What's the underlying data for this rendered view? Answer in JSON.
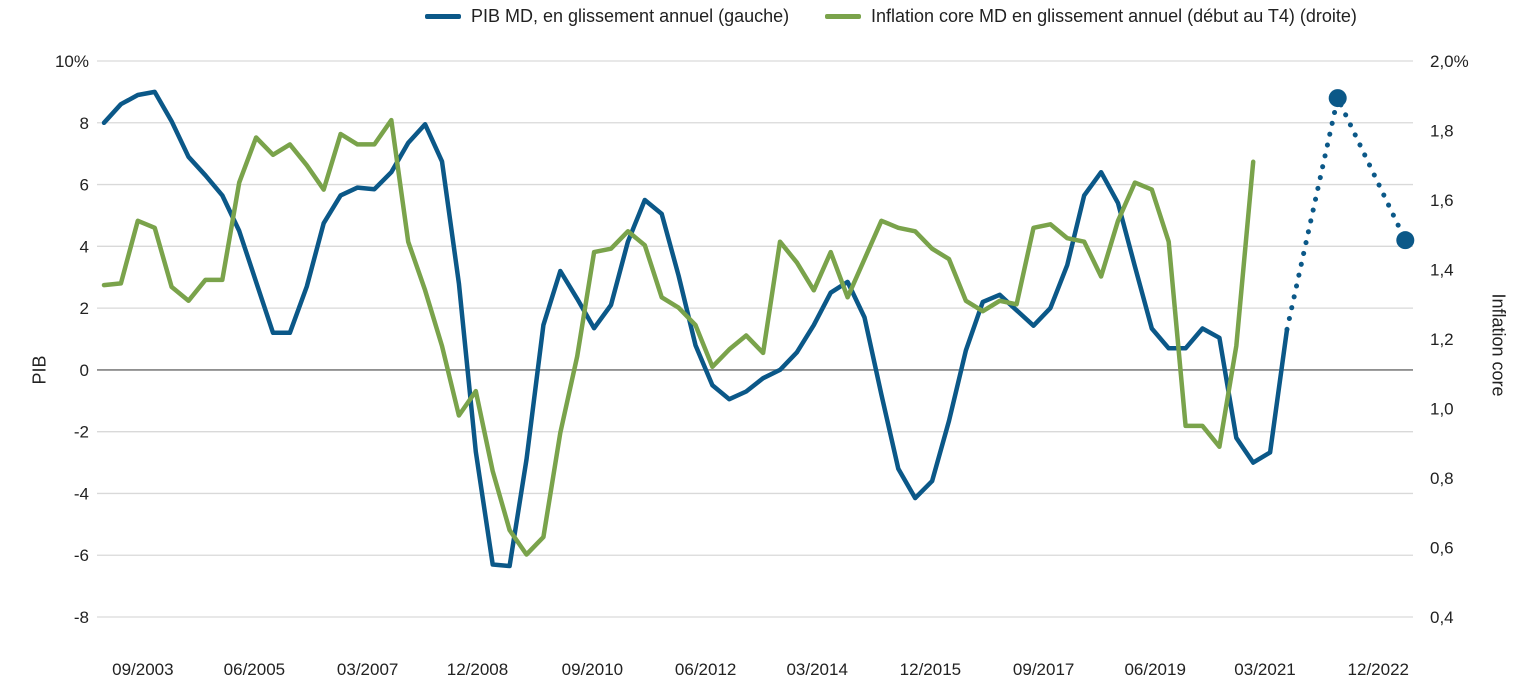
{
  "chart_data": {
    "type": "line",
    "title": "",
    "legend_placement": "top",
    "ylabel_left": "PIB",
    "ylabel_right": "Inflation core",
    "y_left": {
      "range": [
        -8,
        10
      ],
      "ticks": [
        10,
        8,
        6,
        4,
        2,
        0,
        -2,
        -4,
        -6,
        -8
      ],
      "labels": [
        "10%",
        "8",
        "6",
        "4",
        "2",
        "0",
        "-2",
        "-4",
        "-6",
        "-8"
      ]
    },
    "y_right": {
      "range": [
        0.4,
        2.0
      ],
      "ticks": [
        2.0,
        1.8,
        1.6,
        1.4,
        1.2,
        1.0,
        0.8,
        0.6,
        0.4
      ],
      "labels": [
        "2,0%",
        "1,8",
        "1,6",
        "1,4",
        "1,2",
        "1,0",
        "0,8",
        "0,6",
        "0,4"
      ]
    },
    "x_axis": {
      "unit": "quarter index",
      "range": [
        -0.4,
        77.6
      ],
      "ticks": [
        2.3,
        8.9,
        15.6,
        22.1,
        28.9,
        35.6,
        42.2,
        48.9,
        55.6,
        62.2,
        68.7,
        75.4
      ],
      "labels": [
        "09/2003",
        "06/2005",
        "03/2007",
        "12/2008",
        "09/2010",
        "06/2012",
        "03/2014",
        "12/2015",
        "09/2017",
        "06/2019",
        "03/2021",
        "12/2022"
      ]
    },
    "grid": true,
    "series": [
      {
        "name": "PIB MD, en glissement annuel (gauche)",
        "axis": "left",
        "color": "#0b5888",
        "values": [
          8.0,
          8.6,
          8.9,
          9.0,
          8.05,
          6.9,
          6.3,
          5.65,
          4.5,
          2.85,
          1.2,
          1.2,
          2.7,
          4.75,
          5.65,
          5.9,
          5.85,
          6.4,
          7.35,
          7.95,
          6.75,
          2.8,
          -2.65,
          -6.3,
          -6.35,
          -2.9,
          1.45,
          3.2,
          2.3,
          1.35,
          2.1,
          4.15,
          5.5,
          5.05,
          3.05,
          0.8,
          -0.5,
          -0.95,
          -0.7,
          -0.27,
          0.0,
          0.57,
          1.45,
          2.5,
          2.85,
          1.7,
          -0.8,
          -3.2,
          -4.15,
          -3.6,
          -1.65,
          0.63,
          2.2,
          2.43,
          1.93,
          1.43,
          2.0,
          3.4,
          5.65,
          6.4,
          5.4,
          3.35,
          1.34,
          0.7,
          0.7,
          1.34,
          1.04,
          -2.2,
          -3.0,
          -2.67,
          1.31
        ],
        "forecast": {
          "x": [
            70,
            73,
            77
          ],
          "values": [
            1.31,
            8.8,
            4.2
          ]
        }
      },
      {
        "name": "Inflation core MD en glissement annuel (début au T4) (droite)",
        "axis": "right",
        "color": "#7aa34b",
        "values": [
          1.355,
          1.36,
          1.54,
          1.52,
          1.35,
          1.31,
          1.37,
          1.37,
          1.65,
          1.78,
          1.73,
          1.76,
          1.7,
          1.63,
          1.79,
          1.76,
          1.76,
          1.83,
          1.48,
          1.34,
          1.18,
          0.98,
          1.05,
          0.82,
          0.65,
          0.58,
          0.63,
          0.93,
          1.15,
          1.45,
          1.46,
          1.51,
          1.47,
          1.32,
          1.29,
          1.24,
          1.12,
          1.17,
          1.21,
          1.16,
          1.48,
          1.42,
          1.34,
          1.45,
          1.32,
          1.43,
          1.54,
          1.52,
          1.51,
          1.46,
          1.43,
          1.31,
          1.28,
          1.31,
          1.3,
          1.52,
          1.53,
          1.49,
          1.48,
          1.38,
          1.54,
          1.65,
          1.63,
          1.48,
          0.95,
          0.95,
          0.89,
          1.18,
          1.71
        ]
      }
    ],
    "colors": {
      "grid": "#d9d9d9",
      "zero_line": "#808080"
    }
  }
}
